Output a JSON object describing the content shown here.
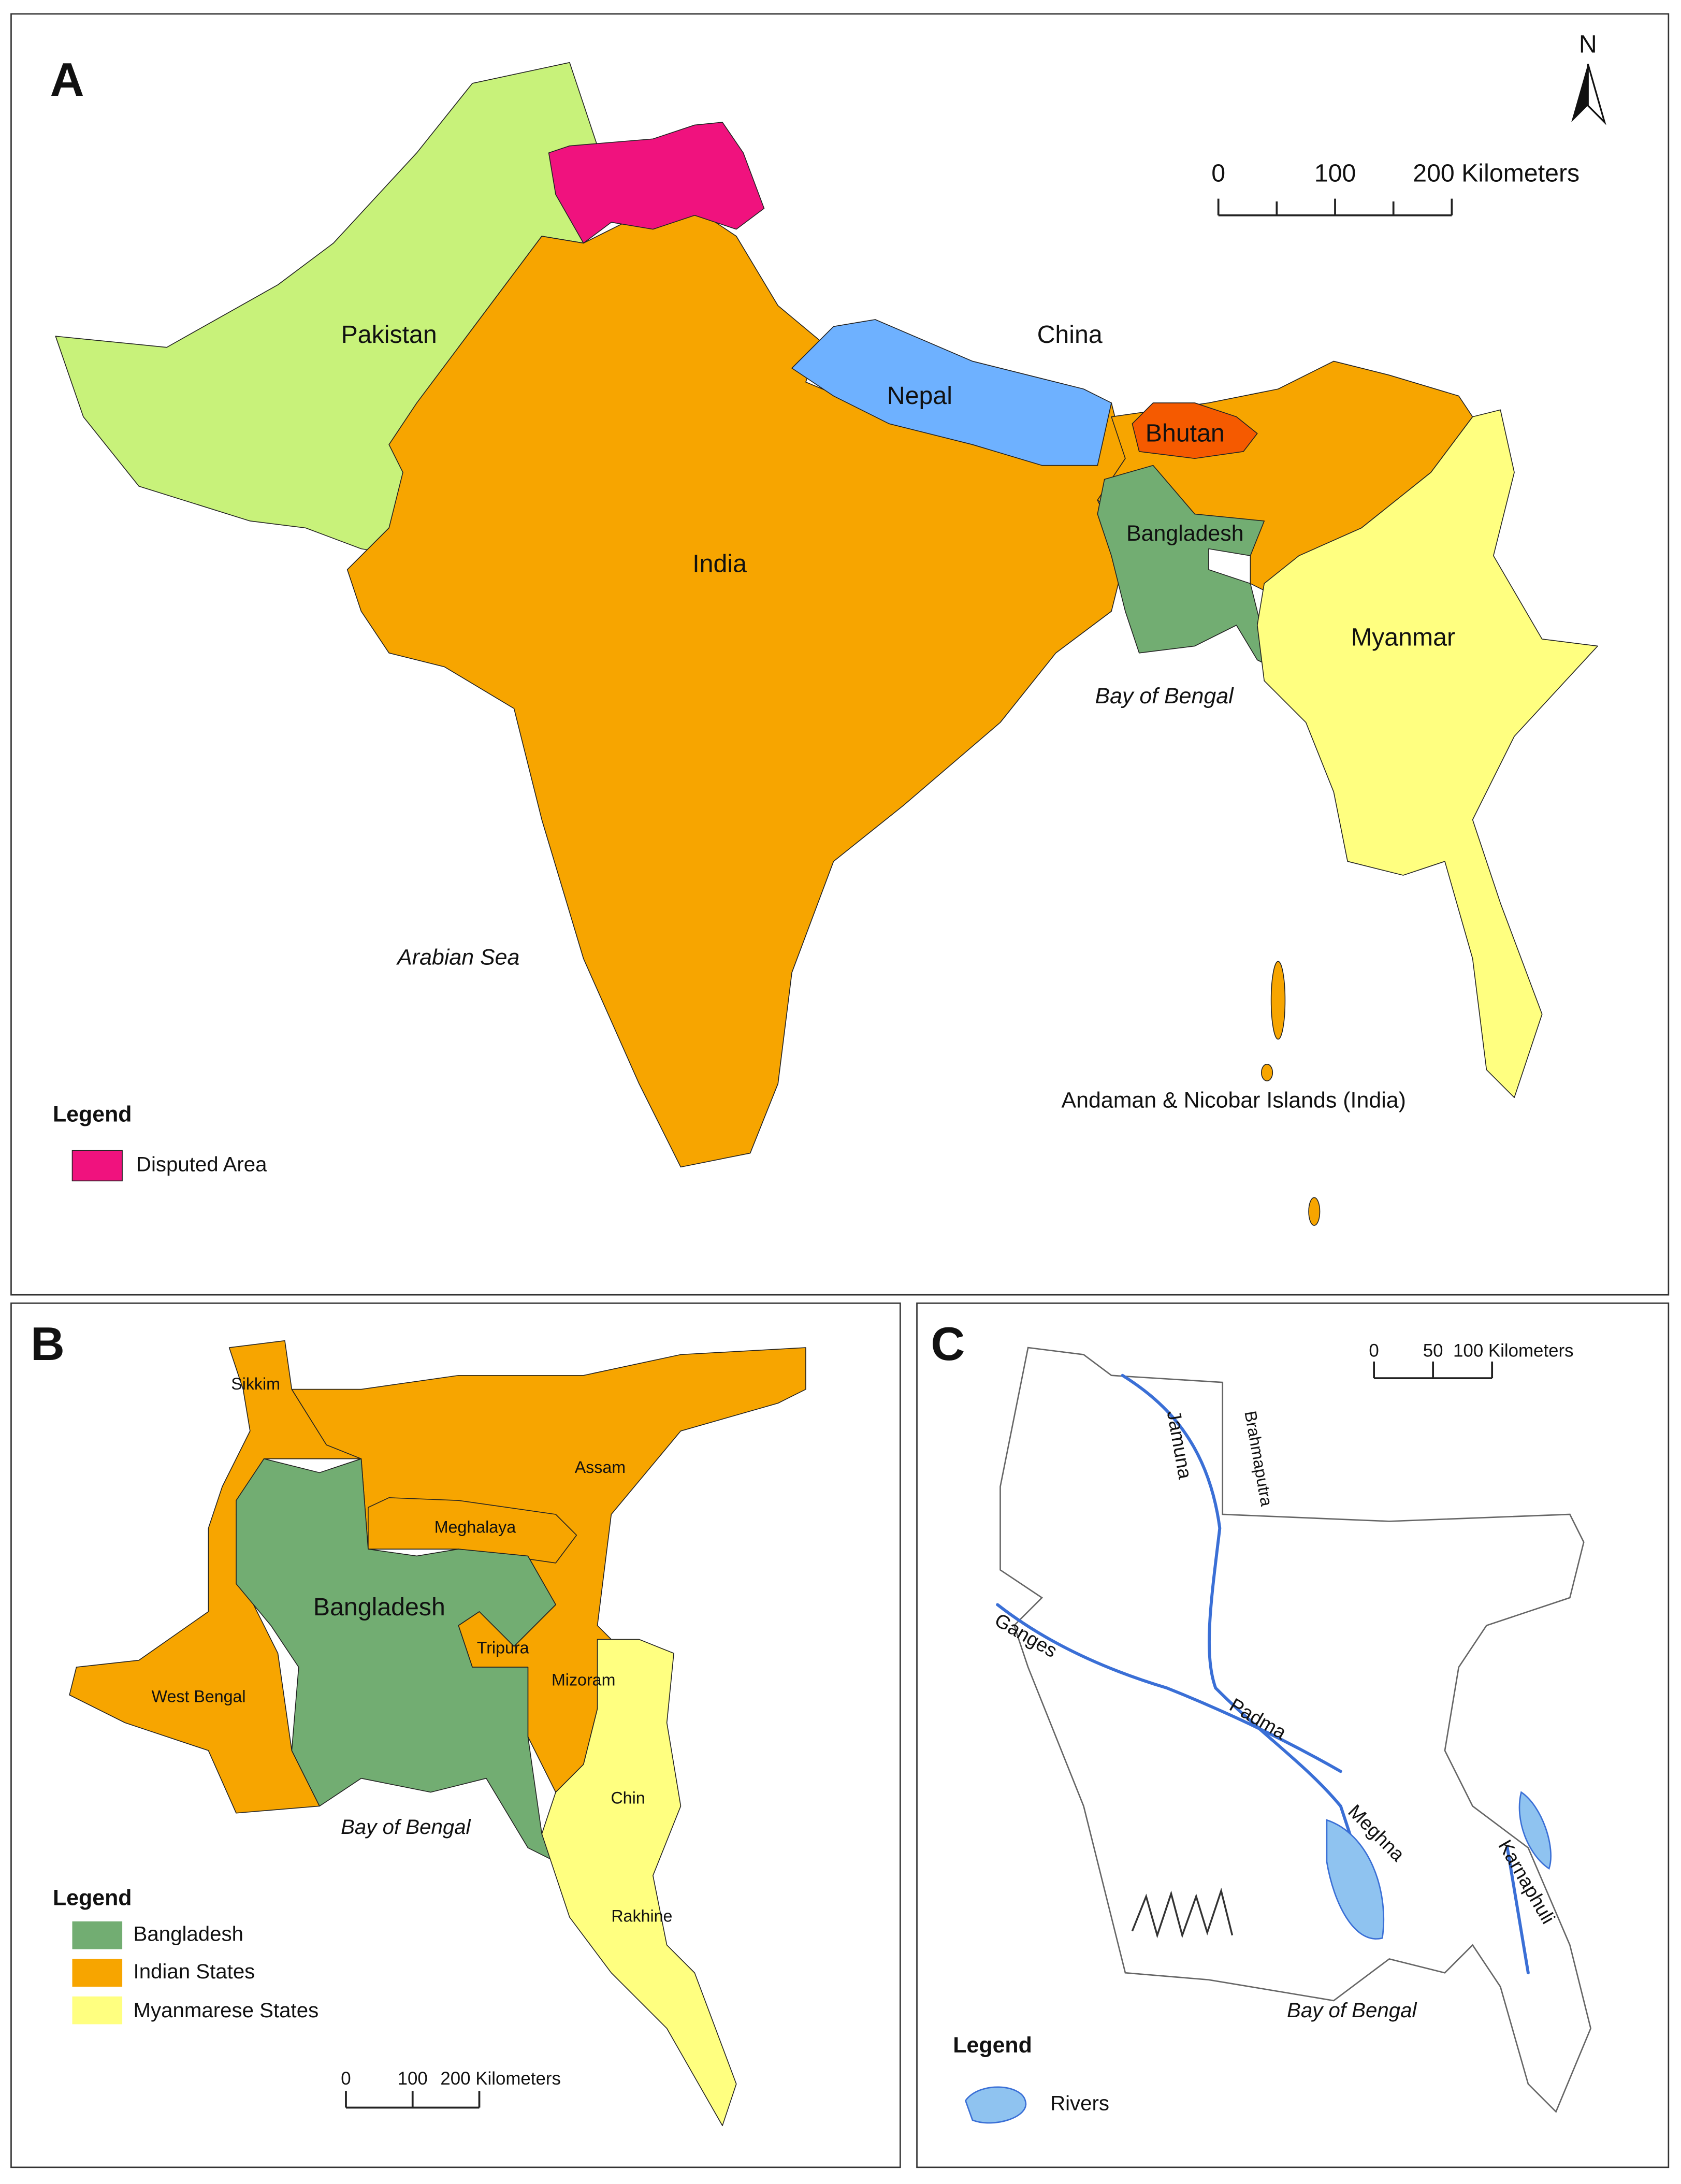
{
  "panels": {
    "a": {
      "letter": "A",
      "north": "N",
      "labels": {
        "pakistan": "Pakistan",
        "india": "India",
        "nepal": "Nepal",
        "china": "China",
        "bhutan": "Bhutan",
        "bangladesh": "Bangladesh",
        "myanmar": "Myanmar",
        "bay": "Bay of Bengal",
        "arabian": "Arabian Sea",
        "andaman": "Andaman & Nicobar Islands (India)"
      },
      "legend": {
        "title": "Legend",
        "items": [
          "Disputed Area"
        ]
      },
      "scale_bar": {
        "ticks": [
          0,
          100,
          {
            "value": 200,
            "label": "200 Kilometers"
          }
        ]
      }
    },
    "b": {
      "letter": "B",
      "labels": {
        "sikkim": "Sikkim",
        "assam": "Assam",
        "meghalaya": "Meghalaya",
        "bangladesh": "Bangladesh",
        "tripura": "Tripura",
        "mizoram": "Mizoram",
        "west_bengal": "West Bengal",
        "bay": "Bay of Bengal",
        "chin": "Chin",
        "rakhine": "Rakhine"
      },
      "legend": {
        "title": "Legend",
        "items": [
          "Bangladesh",
          "Indian States",
          "Myanmarese States"
        ]
      },
      "scale_bar": {
        "ticks": [
          0,
          100,
          {
            "value": 200,
            "label": "200 Kilometers"
          }
        ]
      }
    },
    "c": {
      "letter": "C",
      "labels": {
        "brahmaputra": "Brahmaputra",
        "jamuna": "Jamuna",
        "ganges": "Ganges",
        "padma": "Padma",
        "meghna": "Meghna",
        "karnaphuli": "Karnaphuli",
        "bay": "Bay of Bengal"
      },
      "legend": {
        "title": "Legend",
        "items": [
          "Rivers"
        ]
      },
      "scale_bar": {
        "ticks": [
          0,
          50,
          {
            "value": 100,
            "label": "100 Kilometers"
          }
        ]
      }
    }
  }
}
